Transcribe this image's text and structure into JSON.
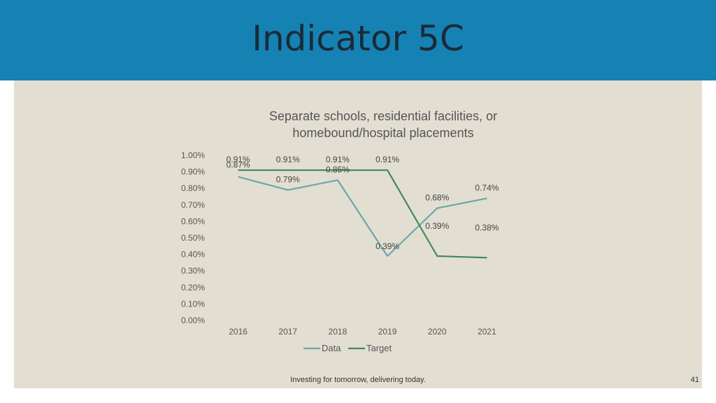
{
  "slide": {
    "title": "Indicator 5C",
    "footer": "Investing for tomorrow, delivering today.",
    "page_number": "41"
  },
  "colors": {
    "header": "#1582b3",
    "panel": "#e3ded2",
    "data_series": "#6aa8ab",
    "target_series": "#3f8a57"
  },
  "chart_data": {
    "type": "line",
    "title_lines": [
      "Separate schools, residential facilities, or",
      "homebound/hospital placements"
    ],
    "categories": [
      "2016",
      "2017",
      "2018",
      "2019",
      "2020",
      "2021"
    ],
    "y_ticks": [
      "0.00%",
      "0.10%",
      "0.20%",
      "0.30%",
      "0.40%",
      "0.50%",
      "0.60%",
      "0.70%",
      "0.80%",
      "0.90%",
      "1.00%"
    ],
    "ylim": [
      0,
      1.0
    ],
    "grid": false,
    "legend_position": "bottom",
    "series": [
      {
        "name": "Data",
        "values": [
          0.87,
          0.79,
          0.85,
          0.39,
          0.68,
          0.74
        ],
        "labels": [
          "0.87%",
          "0.79%",
          "0.85%",
          "0.39%",
          "0.68%",
          "0.74%"
        ]
      },
      {
        "name": "Target",
        "values": [
          0.91,
          0.91,
          0.91,
          0.91,
          0.39,
          0.38
        ],
        "labels": [
          "0.91%",
          "0.91%",
          "0.91%",
          "0.91%",
          "0.39%",
          "0.38%"
        ]
      }
    ]
  }
}
